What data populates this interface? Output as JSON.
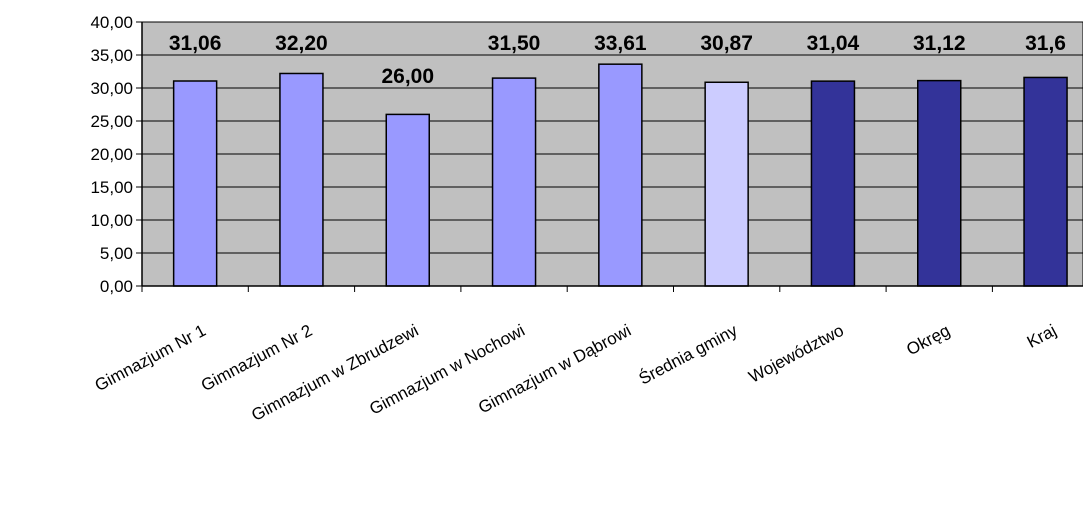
{
  "chart_data": {
    "type": "bar",
    "categories": [
      "Gimnazjum Nr 1",
      "Gimnazjum Nr 2",
      "Gimnazjum w Zbrudzewi",
      "Gimnazjum w Nochowi",
      "Gimnazjum w Dąbrowi",
      "Średnia gminy",
      "Województwo",
      "Okręg",
      "Kraj"
    ],
    "values": [
      31.06,
      32.2,
      26.0,
      31.5,
      33.61,
      30.87,
      31.04,
      31.12,
      31.6
    ],
    "data_labels": [
      "31,06",
      "32,20",
      "26,00",
      "31,50",
      "33,61",
      "30,87",
      "31,04",
      "31,12",
      "31,6"
    ],
    "bar_colors": [
      "#9999ff",
      "#9999ff",
      "#9999ff",
      "#9999ff",
      "#9999ff",
      "#ccccff",
      "#333399",
      "#333399",
      "#333399"
    ],
    "plot_background": "#c0c0c0",
    "ylim": [
      0,
      40
    ],
    "y_ticks": [
      "0,00",
      "5,00",
      "10,00",
      "15,00",
      "20,00",
      "25,00",
      "30,00",
      "35,00",
      "40,00"
    ],
    "grid": true,
    "title": "",
    "xlabel": "",
    "ylabel": ""
  }
}
